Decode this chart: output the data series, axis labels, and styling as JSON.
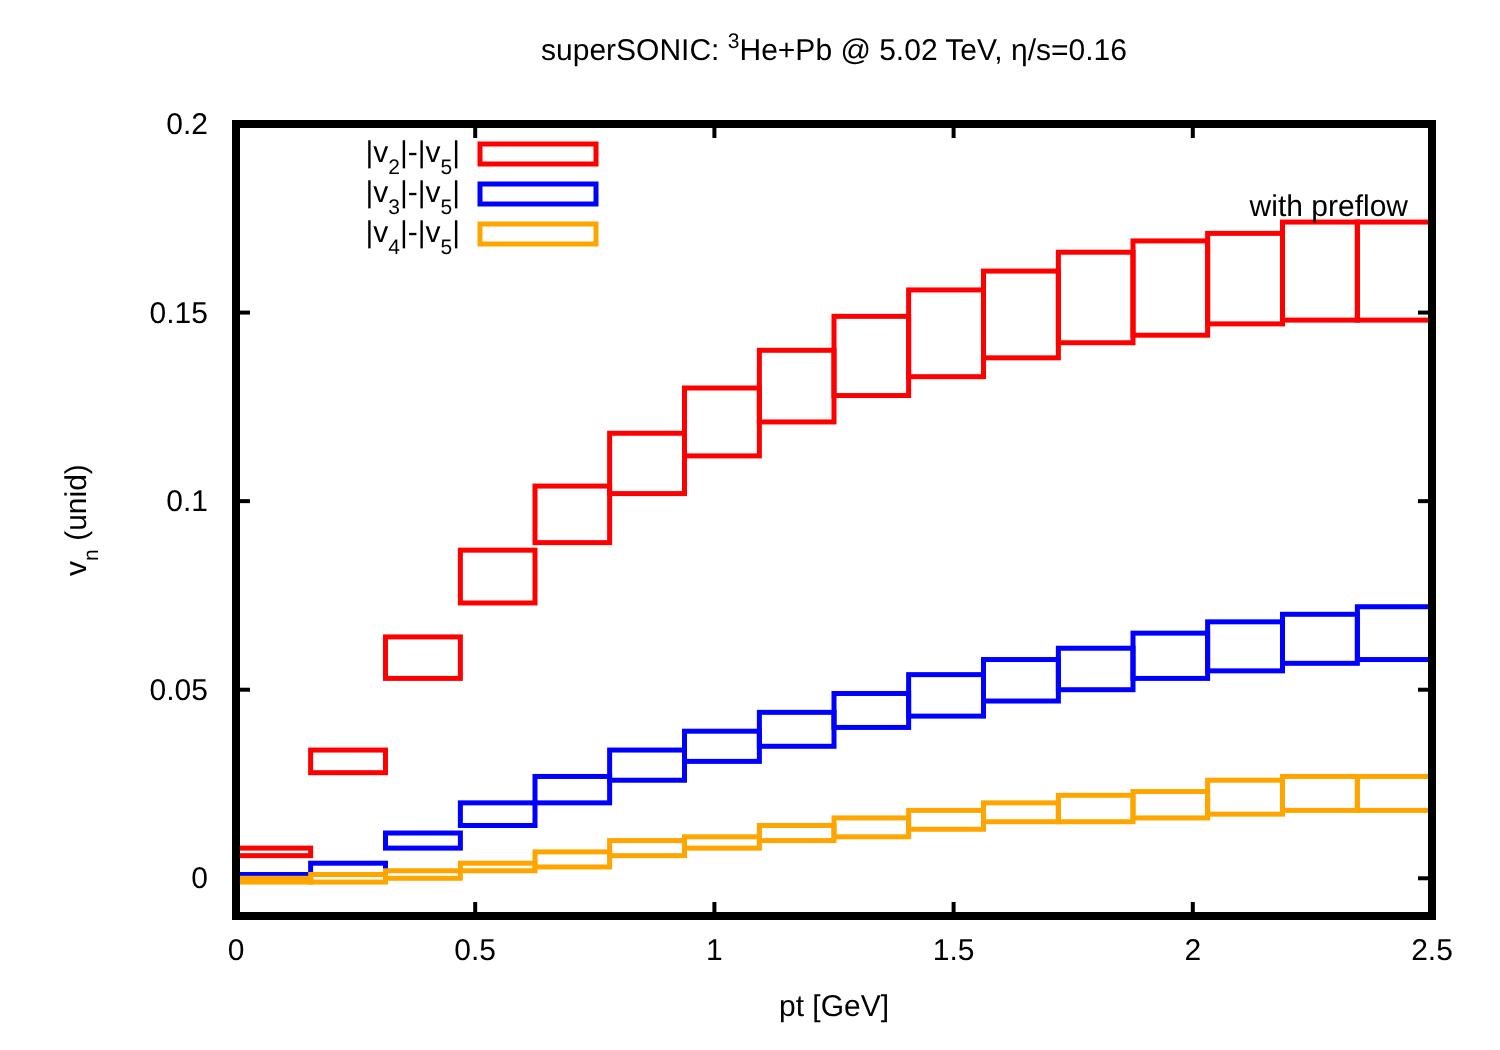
{
  "chart_data": {
    "type": "bar",
    "title": "superSONIC: $^{3}$He+Pb @ 5.02 TeV, η/s=0.16",
    "xlabel": "pt [GeV]",
    "ylabel": "v$_{n}$ (unid)",
    "annotations": [
      "with preflow"
    ],
    "x": [
      0.078,
      0.234,
      0.391,
      0.547,
      0.703,
      0.859,
      1.016,
      1.172,
      1.328,
      1.484,
      1.641,
      1.797,
      1.953,
      2.109,
      2.266,
      2.422
    ],
    "series": [
      {
        "name": "|v$_{2}$|-|v$_{5}$|",
        "color": "#ff0000",
        "base": [
          0.006,
          0.028,
          0.053,
          0.073,
          0.089,
          0.102,
          0.112,
          0.121,
          0.128,
          0.133,
          0.138,
          0.142,
          0.144,
          0.147,
          0.148,
          0.148
        ],
        "values": [
          0.002,
          0.006,
          0.011,
          0.014,
          0.015,
          0.016,
          0.018,
          0.019,
          0.021,
          0.023,
          0.023,
          0.024,
          0.025,
          0.024,
          0.026,
          0.026
        ]
      },
      {
        "name": "|v$_{3}$|-|v$_{5}$|",
        "color": "#0000ff",
        "base": [
          0,
          0.001,
          0.008,
          0.014,
          0.02,
          0.026,
          0.031,
          0.035,
          0.04,
          0.043,
          0.047,
          0.05,
          0.053,
          0.055,
          0.057,
          0.058
        ],
        "values": [
          0.001,
          0.003,
          0.004,
          0.006,
          0.007,
          0.008,
          0.008,
          0.009,
          0.009,
          0.011,
          0.011,
          0.011,
          0.012,
          0.013,
          0.013,
          0.014
        ]
      },
      {
        "name": "|v$_{4}$|-|v$_{5}$|",
        "color": "#ffa500",
        "base": [
          -0.001,
          -0.001,
          0,
          0.002,
          0.003,
          0.006,
          0.008,
          0.01,
          0.011,
          0.013,
          0.015,
          0.015,
          0.016,
          0.017,
          0.018,
          0.018
        ],
        "values": [
          0.001,
          0.002,
          0.002,
          0.002,
          0.004,
          0.004,
          0.003,
          0.004,
          0.005,
          0.005,
          0.005,
          0.007,
          0.007,
          0.009,
          0.009,
          0.009
        ]
      }
    ],
    "xlim": [
      0,
      2.5
    ],
    "ylim": [
      -0.01,
      0.2
    ],
    "xticks": [
      0,
      0.5,
      1,
      1.5,
      2,
      2.5
    ],
    "yticks": [
      0,
      0.05,
      0.1,
      0.15,
      0.2
    ],
    "grid": false,
    "legend": "top left"
  }
}
